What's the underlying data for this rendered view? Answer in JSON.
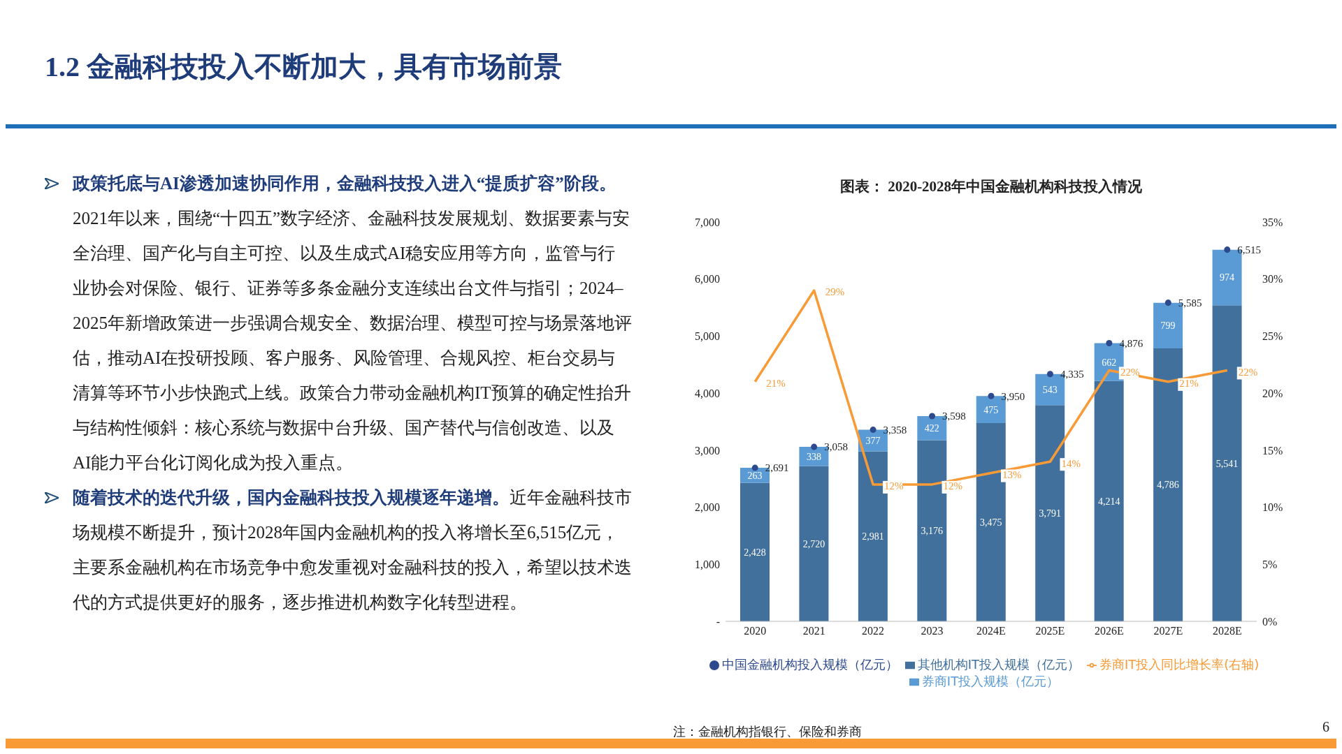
{
  "chart_data": {
    "type": "bar",
    "title": "1.2 金融科技投入不断加大，具有市场前景",
    "subtitle": "图表：  2020-2028年中国金融机构科技投入情况",
    "annotations": [
      "政策托底与AI渗透加速协同作用，金融科技投入进入“提质扩容”阶段。2021年以来，围绕“十四五”数字经济、金融科技发展规划、数据要素与安全治理、国产化与自主可控、以及生成式AI稳安应用等方向，监管与行业协会对保险、银行、证券等多条金融分支连续出台文件与指引；2024–2025年新增政策进一步强调合规安全、数据治理、模型可控与场景落地评估，推动AI在投研投顾、客户服务、风险管理、合规风控、柜台交易与清算等环节小步快跑式上线。政策合力带动金融机构IT预算的确定性抬升与结构性倾斜：核心系统与数据中台升级、国产替代与信创改造、以及AI能力平台化订阅化成为投入重点。",
      "随着技术的迭代升级，国内金融科技投入规模逐年递增。近年金融科技市场规模不断提升，预计2028年国内金融机构的投入将增长至6,515亿元，主要系金融机构在市场竞争中愈发重视对金融科技的投入，希望以技术迭代的方式提供更好的服务，逐步推进机构数字化转型进程。",
      "注：金融机构指银行、保险和券商",
      "6"
    ],
    "categories": [
      "2020",
      "2021",
      "2022",
      "2023",
      "2024E",
      "2025E",
      "2026E",
      "2027E",
      "2028E"
    ],
    "stacked": true,
    "legend": "bottom",
    "ylim": [
      0,
      7000
    ],
    "yticks": [
      {
        "value": 0,
        "label": "-"
      },
      {
        "value": 1000,
        "label": "1,000"
      },
      {
        "value": 2000,
        "label": "2,000"
      },
      {
        "value": 3000,
        "label": "3,000"
      },
      {
        "value": 4000,
        "label": "4,000"
      },
      {
        "value": 5000,
        "label": "5,000"
      },
      {
        "value": 6000,
        "label": "6,000"
      },
      {
        "value": 7000,
        "label": "7,000"
      }
    ],
    "y2lim": [
      0,
      35
    ],
    "y2ticks": [
      {
        "value": 0,
        "label": "0%"
      },
      {
        "value": 5,
        "label": "5%"
      },
      {
        "value": 10,
        "label": "10%"
      },
      {
        "value": 15,
        "label": "15%"
      },
      {
        "value": 20,
        "label": "20%"
      },
      {
        "value": 25,
        "label": "25%"
      },
      {
        "value": 30,
        "label": "30%"
      },
      {
        "value": 35,
        "label": "35%"
      }
    ],
    "series": [
      {
        "name": "其他机构IT投入规模（亿元）",
        "color": "#41709c",
        "values": [
          2428,
          2720,
          2981,
          3176,
          3475,
          3791,
          4214,
          4786,
          5541
        ],
        "value_labels": [
          "2,428",
          "2,720",
          "2,981",
          "3,176",
          "3,475",
          "3,791",
          "4,214",
          "4,786",
          "5,541"
        ]
      },
      {
        "name": "券商IT投入规模（亿元）",
        "color": "#5b9bd5",
        "values": [
          263,
          338,
          377,
          422,
          475,
          543,
          662,
          799,
          974
        ],
        "value_labels": [
          "263",
          "338",
          "377",
          "422",
          "475",
          "543",
          "662",
          "799",
          "974"
        ]
      },
      {
        "name": "中国金融机构投入规模（亿元）",
        "type": "scatter",
        "color": "#2e4a8e",
        "values": [
          2691,
          3058,
          3358,
          3598,
          3950,
          4335,
          4876,
          5585,
          6515
        ],
        "value_labels": [
          "2,691",
          "3,058",
          "3,358",
          "3,598",
          "3,950",
          "4,335",
          "4,876",
          "5,585",
          "6,515"
        ]
      },
      {
        "name": "券商IT投入同比增长率(右轴)",
        "type": "line",
        "axis": "y2",
        "color": "#f89a35",
        "values": [
          21,
          29,
          12,
          12,
          13,
          14,
          22,
          21,
          22
        ],
        "value_labels": [
          "21%",
          "29%",
          "12%",
          "12%",
          "13%",
          "14%",
          "22%",
          "21%",
          "22%"
        ]
      }
    ]
  }
}
